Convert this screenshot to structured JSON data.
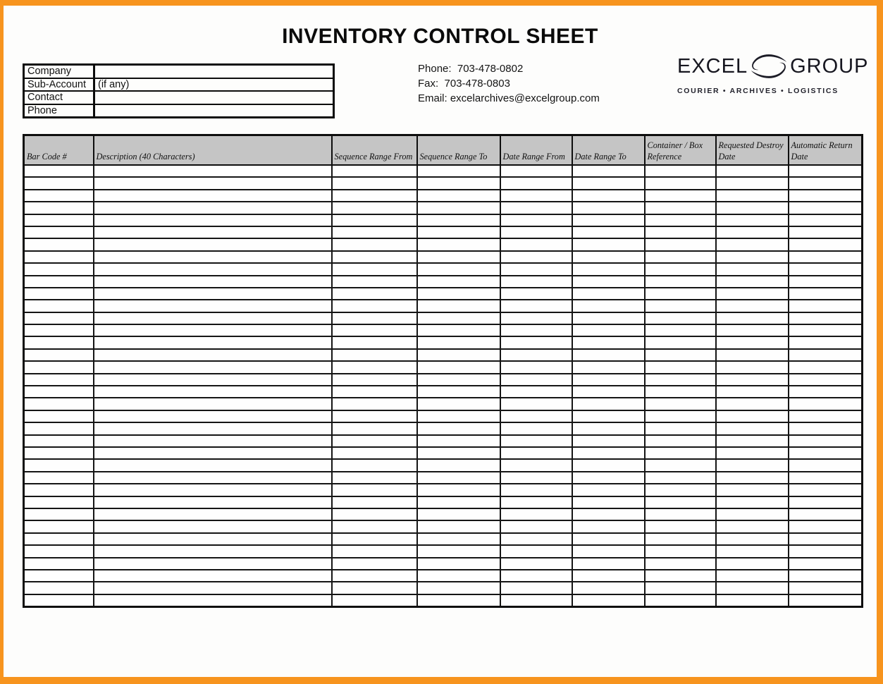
{
  "page": {
    "title": "INVENTORY CONTROL SHEET"
  },
  "form": {
    "rows": [
      {
        "label": "Company",
        "value": ""
      },
      {
        "label": "Sub-Account",
        "value": "(if any)"
      },
      {
        "label": "Contact",
        "value": ""
      },
      {
        "label": "Phone",
        "value": ""
      }
    ]
  },
  "contact": {
    "phone": "Phone:  703-478-0802",
    "fax": "Fax:  703-478-0803",
    "email": "Email: excelarchives@excelgroup.com"
  },
  "logo": {
    "word_left": "EXCEL",
    "word_right": "GROUP",
    "icon": "swirl-ellipse-icon",
    "tagline": "COURIER • ARCHIVES • LOGISTICS"
  },
  "table": {
    "columns": [
      {
        "label": "Bar Code #"
      },
      {
        "label": "Description (40 Characters)"
      },
      {
        "label": "Sequence Range From"
      },
      {
        "label": "Sequence Range To"
      },
      {
        "label": "Date Range From"
      },
      {
        "label": "Date Range To"
      },
      {
        "label": "Container / Box Reference"
      },
      {
        "label": "Requested Destroy Date"
      },
      {
        "label": "Automatic Return Date"
      }
    ],
    "row_count": 36,
    "header_bg": "#c5c5c5"
  },
  "colors": {
    "frame_orange": "#F7941E",
    "grid_border": "#0e0e0e"
  }
}
